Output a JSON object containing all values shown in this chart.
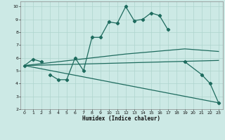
{
  "xlabel": "Humidex (Indice chaleur)",
  "background_color": "#cce9e5",
  "line_color": "#1e6b5e",
  "grid_color": "#aed4ce",
  "xlim": [
    -0.5,
    23.5
  ],
  "ylim": [
    2,
    10.4
  ],
  "xticks": [
    0,
    1,
    2,
    3,
    4,
    5,
    6,
    7,
    8,
    9,
    10,
    11,
    12,
    13,
    14,
    15,
    16,
    17,
    18,
    19,
    20,
    21,
    22,
    23
  ],
  "yticks": [
    2,
    3,
    4,
    5,
    6,
    7,
    8,
    9,
    10
  ],
  "line1_x": [
    0,
    1,
    2,
    3,
    4,
    5,
    6,
    7,
    8,
    9,
    10,
    11,
    12,
    13,
    14,
    15,
    16,
    17,
    19,
    21,
    22,
    23
  ],
  "line1_y": [
    5.4,
    5.9,
    5.7,
    4.7,
    4.3,
    4.3,
    6.0,
    5.0,
    7.6,
    7.6,
    8.8,
    8.7,
    10.0,
    8.9,
    9.0,
    9.5,
    9.3,
    8.2,
    5.7,
    4.7,
    4.0,
    2.5
  ],
  "line1_gaps_after": [
    2,
    17
  ],
  "line2_x": [
    0,
    23
  ],
  "line2_y": [
    5.4,
    5.8
  ],
  "line3_x": [
    0,
    23
  ],
  "line3_y": [
    5.4,
    2.5
  ],
  "line4_x": [
    0,
    12,
    19,
    23
  ],
  "line4_y": [
    5.4,
    6.3,
    6.7,
    6.5
  ]
}
